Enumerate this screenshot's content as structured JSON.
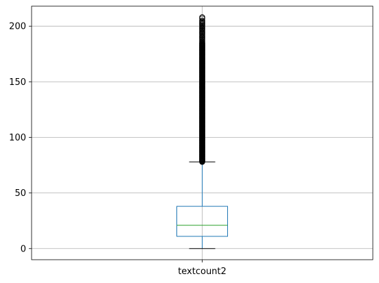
{
  "chart_data": {
    "type": "box",
    "categories": [
      "textcount2"
    ],
    "ylim": [
      -10,
      218
    ],
    "yticks": [
      0,
      50,
      100,
      150,
      200
    ],
    "grid": true,
    "boxes": [
      {
        "name": "textcount2",
        "whisker_low": 0,
        "q1": 11,
        "median": 21,
        "q3": 38,
        "whisker_high": 78,
        "outliers_min": 78,
        "outliers_max": 185,
        "outliers_sparse": [
          186,
          187,
          188,
          189,
          190,
          191,
          192,
          193,
          194,
          195,
          196,
          197,
          198,
          199,
          200,
          201,
          202,
          203,
          204,
          205,
          207,
          208
        ]
      }
    ]
  },
  "colors": {
    "box": "#1f77b4",
    "median": "#2ca02c",
    "grid": "#b0b0b0",
    "outlier": "#000000",
    "whisker": "#1f77b4",
    "cap": "#000000"
  }
}
